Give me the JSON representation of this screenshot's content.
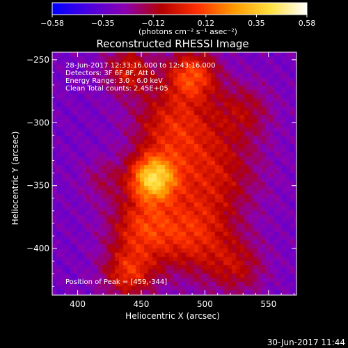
{
  "chart_data": {
    "type": "heatmap",
    "title": "Reconstructed RHESSI Image",
    "xlabel": "Heliocentric X (arcsec)",
    "ylabel": "Heliocentric Y (arcsec)",
    "xlim": [
      380,
      572
    ],
    "ylim": [
      -437,
      -244
    ],
    "x_ticks": [
      {
        "value": 400,
        "label": "400"
      },
      {
        "value": 450,
        "label": "450"
      },
      {
        "value": 500,
        "label": "500"
      },
      {
        "value": 550,
        "label": "550"
      }
    ],
    "y_ticks": [
      {
        "value": -250,
        "label": "−250"
      },
      {
        "value": -300,
        "label": "−300"
      },
      {
        "value": -350,
        "label": "−350"
      },
      {
        "value": -400,
        "label": "−400"
      }
    ],
    "colorbar": {
      "min": -0.58,
      "max": 0.58,
      "ticks": [
        {
          "value": -0.58,
          "label": "−0.58"
        },
        {
          "value": -0.35,
          "label": "−0.35"
        },
        {
          "value": -0.12,
          "label": "−0.12"
        },
        {
          "value": 0.12,
          "label": "0.12"
        },
        {
          "value": 0.35,
          "label": "0.35"
        },
        {
          "value": 0.58,
          "label": "0.58"
        }
      ],
      "units_label": "(photons cm⁻² s⁻¹ asec⁻²)",
      "stops": [
        "#0000ff",
        "#4b00e0",
        "#8c00b0",
        "#b30000",
        "#ff3000",
        "#ff9a00",
        "#ffe040",
        "#ffffff"
      ]
    },
    "annotations": [
      "28-Jun-2017 12:33:16.000 to 12:43:16.000",
      "Detectors: 3F 6F 8F, Att 0",
      "Energy Range: 3.0 - 6.0 keV",
      "Clean     Total counts: 2.45E+05"
    ],
    "peak_label": "Position of Peak = [459,-344]",
    "peak": {
      "x": 459,
      "y": -344
    },
    "components": [
      {
        "x": 459,
        "y": -344,
        "amp": 0.6,
        "sigma": 13
      },
      {
        "x": 490,
        "y": -262,
        "amp": 0.38,
        "sigma": 14
      },
      {
        "x": 440,
        "y": -258,
        "amp": 0.28,
        "sigma": 13
      },
      {
        "x": 475,
        "y": -302,
        "amp": 0.3,
        "sigma": 22
      },
      {
        "x": 505,
        "y": -340,
        "amp": 0.26,
        "sigma": 26
      },
      {
        "x": 450,
        "y": -383,
        "amp": 0.32,
        "sigma": 18
      },
      {
        "x": 490,
        "y": -390,
        "amp": 0.3,
        "sigma": 22
      },
      {
        "x": 440,
        "y": -420,
        "amp": 0.32,
        "sigma": 14
      },
      {
        "x": 530,
        "y": -290,
        "amp": 0.18,
        "sigma": 16
      },
      {
        "x": 525,
        "y": -415,
        "amp": 0.2,
        "sigma": 16
      },
      {
        "x": 420,
        "y": -345,
        "amp": 0.12,
        "sigma": 12
      }
    ],
    "background": -0.3,
    "grid": false
  },
  "footer": {
    "timestamp": "30-Jun-2017 11:44"
  }
}
